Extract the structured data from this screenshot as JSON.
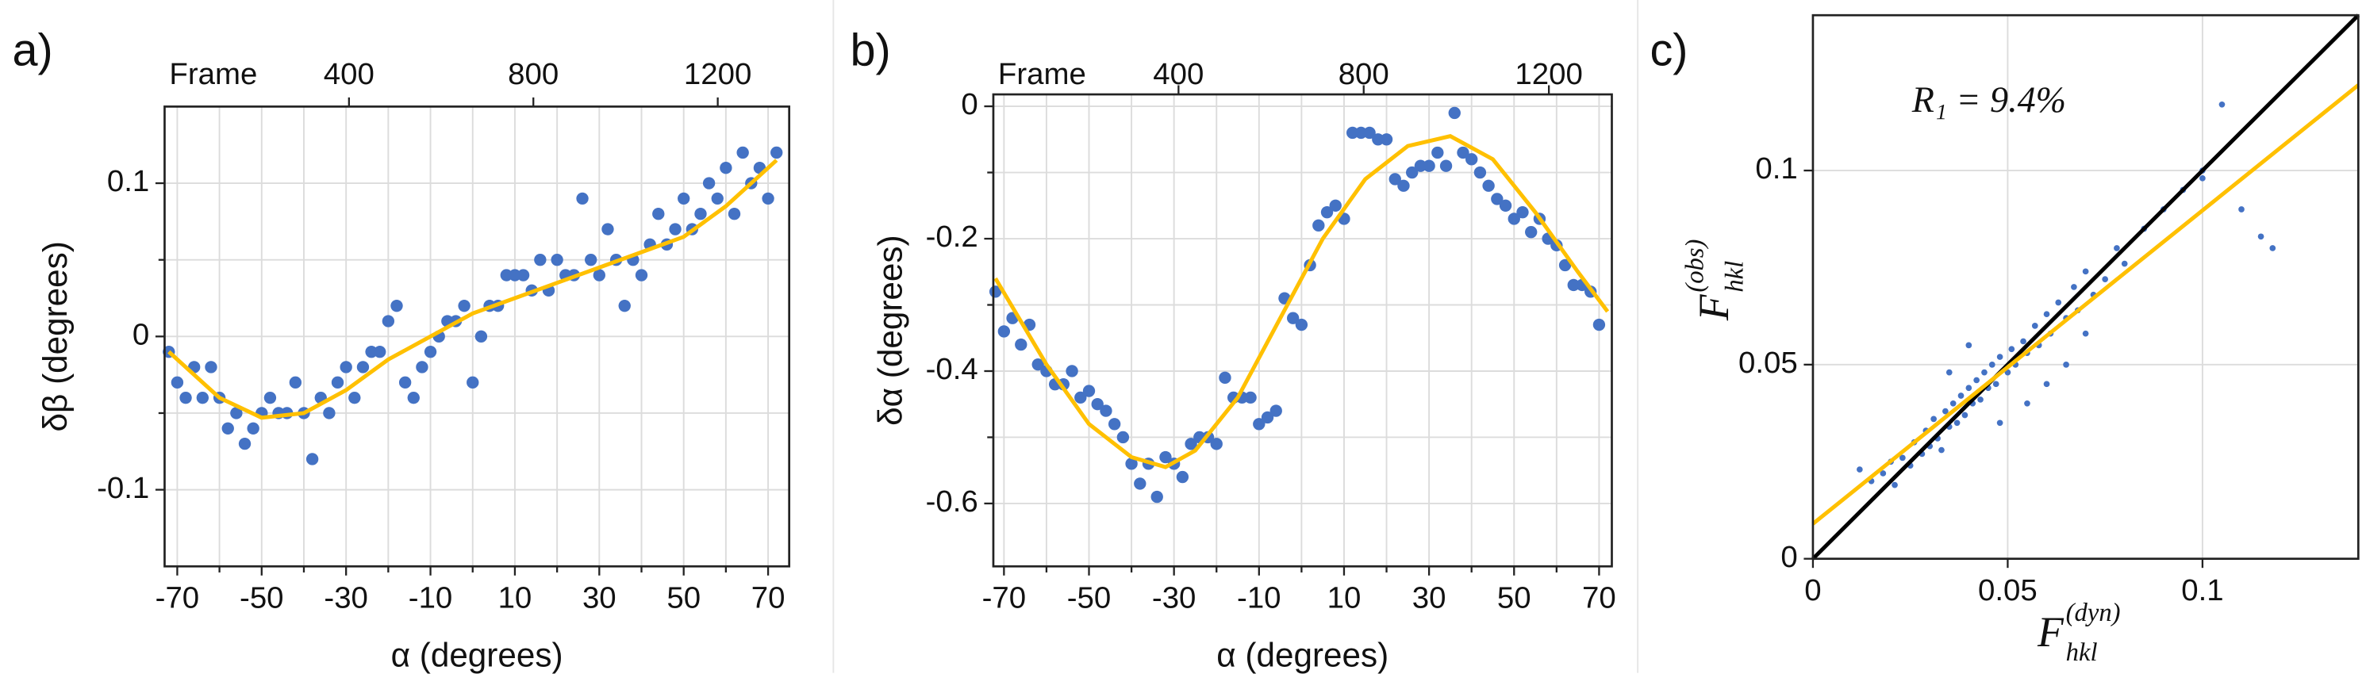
{
  "chart_data": [
    {
      "type": "scatter",
      "panel_label": "a)",
      "xlabel": "α (degrees)",
      "ylabel": "δβ (degrees)",
      "x2label": "Frame",
      "xlim": [
        -73,
        75
      ],
      "ylim": [
        -0.15,
        0.15
      ],
      "xticks": [
        -70,
        -50,
        -30,
        -10,
        10,
        30,
        50,
        70
      ],
      "xminorticks": [
        -60,
        -40,
        -20,
        0,
        20,
        40,
        60
      ],
      "yticks": [
        -0.1,
        0,
        0.1
      ],
      "yminorticks": [
        -0.05,
        0.05
      ],
      "x2lim": [
        0,
        1355
      ],
      "x2ticks": [
        400,
        800,
        1200
      ],
      "grid": true,
      "series": [
        {
          "mode": "markers",
          "color": "#4472c4",
          "x": [
            -72,
            -70,
            -68,
            -66,
            -64,
            -62,
            -60,
            -58,
            -56,
            -54,
            -52,
            -50,
            -48,
            -46,
            -44,
            -42,
            -40,
            -38,
            -36,
            -34,
            -32,
            -30,
            -28,
            -26,
            -24,
            -22,
            -20,
            -18,
            -16,
            -14,
            -12,
            -10,
            -8,
            -6,
            -4,
            -2,
            0,
            2,
            4,
            6,
            8,
            10,
            12,
            14,
            16,
            18,
            20,
            22,
            24,
            26,
            28,
            30,
            32,
            34,
            36,
            38,
            40,
            42,
            44,
            46,
            48,
            50,
            52,
            54,
            56,
            58,
            60,
            62,
            64,
            66,
            68,
            70,
            72
          ],
          "values": [
            -0.01,
            -0.03,
            -0.04,
            -0.02,
            -0.04,
            -0.02,
            -0.04,
            -0.06,
            -0.05,
            -0.07,
            -0.06,
            -0.05,
            -0.04,
            -0.05,
            -0.05,
            -0.03,
            -0.05,
            -0.08,
            -0.04,
            -0.05,
            -0.03,
            -0.02,
            -0.04,
            -0.02,
            -0.01,
            -0.01,
            0.01,
            0.02,
            -0.03,
            -0.04,
            -0.02,
            -0.01,
            0.0,
            0.01,
            0.01,
            0.02,
            -0.03,
            0.0,
            0.02,
            0.02,
            0.04,
            0.04,
            0.04,
            0.03,
            0.05,
            0.03,
            0.05,
            0.04,
            0.04,
            0.09,
            0.05,
            0.04,
            0.07,
            0.05,
            0.02,
            0.05,
            0.04,
            0.06,
            0.08,
            0.06,
            0.07,
            0.09,
            0.07,
            0.08,
            0.1,
            0.09,
            0.11,
            0.08,
            0.12,
            0.1,
            0.11,
            0.09,
            0.12
          ]
        },
        {
          "mode": "line",
          "color": "#ffc000",
          "x": [
            -72,
            -60,
            -50,
            -40,
            -30,
            -20,
            -10,
            0,
            10,
            20,
            30,
            40,
            50,
            60,
            72
          ],
          "values": [
            -0.01,
            -0.04,
            -0.053,
            -0.05,
            -0.035,
            -0.015,
            0.0,
            0.015,
            0.025,
            0.035,
            0.045,
            0.055,
            0.065,
            0.085,
            0.115
          ]
        }
      ]
    },
    {
      "type": "scatter",
      "panel_label": "b)",
      "xlabel": "α (degrees)",
      "ylabel": "δα (degrees)",
      "x2label": "Frame",
      "xlim": [
        -72.5,
        73
      ],
      "ylim": [
        -0.695,
        0.018
      ],
      "xticks": [
        -70,
        -50,
        -30,
        -10,
        10,
        30,
        50,
        70
      ],
      "xminorticks": [
        -60,
        -40,
        -20,
        0,
        20,
        40,
        60
      ],
      "yticks": [
        -0.6,
        -0.4,
        -0.2,
        0
      ],
      "yminorticks": [
        -0.5,
        -0.3,
        -0.1
      ],
      "x2lim": [
        0,
        1336
      ],
      "x2ticks": [
        400,
        800,
        1200
      ],
      "grid": true,
      "series": [
        {
          "mode": "markers",
          "color": "#4472c4",
          "x": [
            -72,
            -70,
            -68,
            -66,
            -64,
            -62,
            -60,
            -58,
            -56,
            -54,
            -52,
            -50,
            -48,
            -46,
            -44,
            -42,
            -40,
            -38,
            -36,
            -34,
            -32,
            -30,
            -28,
            -26,
            -24,
            -22,
            -20,
            -18,
            -16,
            -14,
            -12,
            -10,
            -8,
            -6,
            -4,
            -2,
            0,
            2,
            4,
            6,
            8,
            10,
            12,
            14,
            16,
            18,
            20,
            22,
            24,
            26,
            28,
            30,
            32,
            34,
            36,
            38,
            40,
            42,
            44,
            46,
            48,
            50,
            52,
            54,
            56,
            58,
            60,
            62,
            64,
            66,
            68,
            70
          ],
          "values": [
            -0.28,
            -0.34,
            -0.32,
            -0.36,
            -0.33,
            -0.39,
            -0.4,
            -0.42,
            -0.42,
            -0.4,
            -0.44,
            -0.43,
            -0.45,
            -0.46,
            -0.48,
            -0.5,
            -0.54,
            -0.57,
            -0.54,
            -0.59,
            -0.53,
            -0.54,
            -0.56,
            -0.51,
            -0.5,
            -0.5,
            -0.51,
            -0.41,
            -0.44,
            -0.44,
            -0.44,
            -0.48,
            -0.47,
            -0.46,
            -0.29,
            -0.32,
            -0.33,
            -0.24,
            -0.18,
            -0.16,
            -0.15,
            -0.17,
            -0.04,
            -0.04,
            -0.04,
            -0.05,
            -0.05,
            -0.11,
            -0.12,
            -0.1,
            -0.09,
            -0.09,
            -0.07,
            -0.09,
            -0.01,
            -0.07,
            -0.08,
            -0.1,
            -0.12,
            -0.14,
            -0.15,
            -0.17,
            -0.16,
            -0.19,
            -0.17,
            -0.2,
            -0.21,
            -0.24,
            -0.27,
            -0.27,
            -0.28,
            -0.33
          ]
        },
        {
          "mode": "line",
          "color": "#ffc000",
          "x": [
            -72,
            -60,
            -50,
            -40,
            -32,
            -25,
            -15,
            -5,
            5,
            15,
            25,
            35,
            45,
            55,
            65,
            72
          ],
          "values": [
            -0.26,
            -0.39,
            -0.48,
            -0.53,
            -0.545,
            -0.52,
            -0.44,
            -0.32,
            -0.2,
            -0.11,
            -0.06,
            -0.045,
            -0.08,
            -0.16,
            -0.25,
            -0.31
          ]
        }
      ]
    },
    {
      "type": "scatter",
      "panel_label": "c)",
      "xlabel": {
        "symbol": "F",
        "sub": "hkl",
        "sup": "(dyn)"
      },
      "ylabel": {
        "symbol": "F",
        "sub": "hkl",
        "sup": "(obs)"
      },
      "annotation": "R₁ = 9.4%",
      "xlim": [
        0,
        0.14
      ],
      "ylim": [
        0,
        0.14
      ],
      "xticks": [
        0,
        0.05,
        0.1
      ],
      "yticks": [
        0,
        0.05,
        0.1
      ],
      "grid": true,
      "series": [
        {
          "mode": "markers",
          "color": "#4472c4",
          "x": [
            0.012,
            0.015,
            0.018,
            0.02,
            0.021,
            0.023,
            0.025,
            0.026,
            0.028,
            0.029,
            0.03,
            0.031,
            0.032,
            0.033,
            0.034,
            0.035,
            0.036,
            0.037,
            0.038,
            0.039,
            0.04,
            0.041,
            0.042,
            0.043,
            0.044,
            0.045,
            0.046,
            0.047,
            0.048,
            0.05,
            0.051,
            0.052,
            0.054,
            0.055,
            0.057,
            0.058,
            0.06,
            0.061,
            0.063,
            0.065,
            0.067,
            0.068,
            0.07,
            0.072,
            0.075,
            0.078,
            0.08,
            0.085,
            0.09,
            0.095,
            0.1,
            0.105,
            0.1,
            0.11,
            0.115,
            0.118,
            0.048,
            0.055,
            0.06,
            0.035,
            0.04,
            0.065,
            0.07
          ],
          "values": [
            0.023,
            0.02,
            0.022,
            0.025,
            0.019,
            0.026,
            0.024,
            0.03,
            0.027,
            0.033,
            0.029,
            0.036,
            0.031,
            0.028,
            0.038,
            0.034,
            0.04,
            0.035,
            0.042,
            0.037,
            0.044,
            0.04,
            0.046,
            0.041,
            0.048,
            0.044,
            0.05,
            0.045,
            0.052,
            0.048,
            0.054,
            0.05,
            0.056,
            0.053,
            0.06,
            0.055,
            0.063,
            0.058,
            0.066,
            0.062,
            0.07,
            0.064,
            0.074,
            0.068,
            0.072,
            0.08,
            0.076,
            0.085,
            0.09,
            0.095,
            0.1,
            0.117,
            0.098,
            0.09,
            0.083,
            0.08,
            0.035,
            0.04,
            0.045,
            0.048,
            0.055,
            0.05,
            0.058
          ]
        },
        {
          "mode": "line",
          "color": "#000000",
          "x": [
            0,
            0.14
          ],
          "values": [
            0,
            0.14
          ]
        },
        {
          "mode": "line",
          "color": "#ffc000",
          "x": [
            0,
            0.14
          ],
          "values": [
            0.009,
            0.122
          ]
        }
      ]
    }
  ]
}
